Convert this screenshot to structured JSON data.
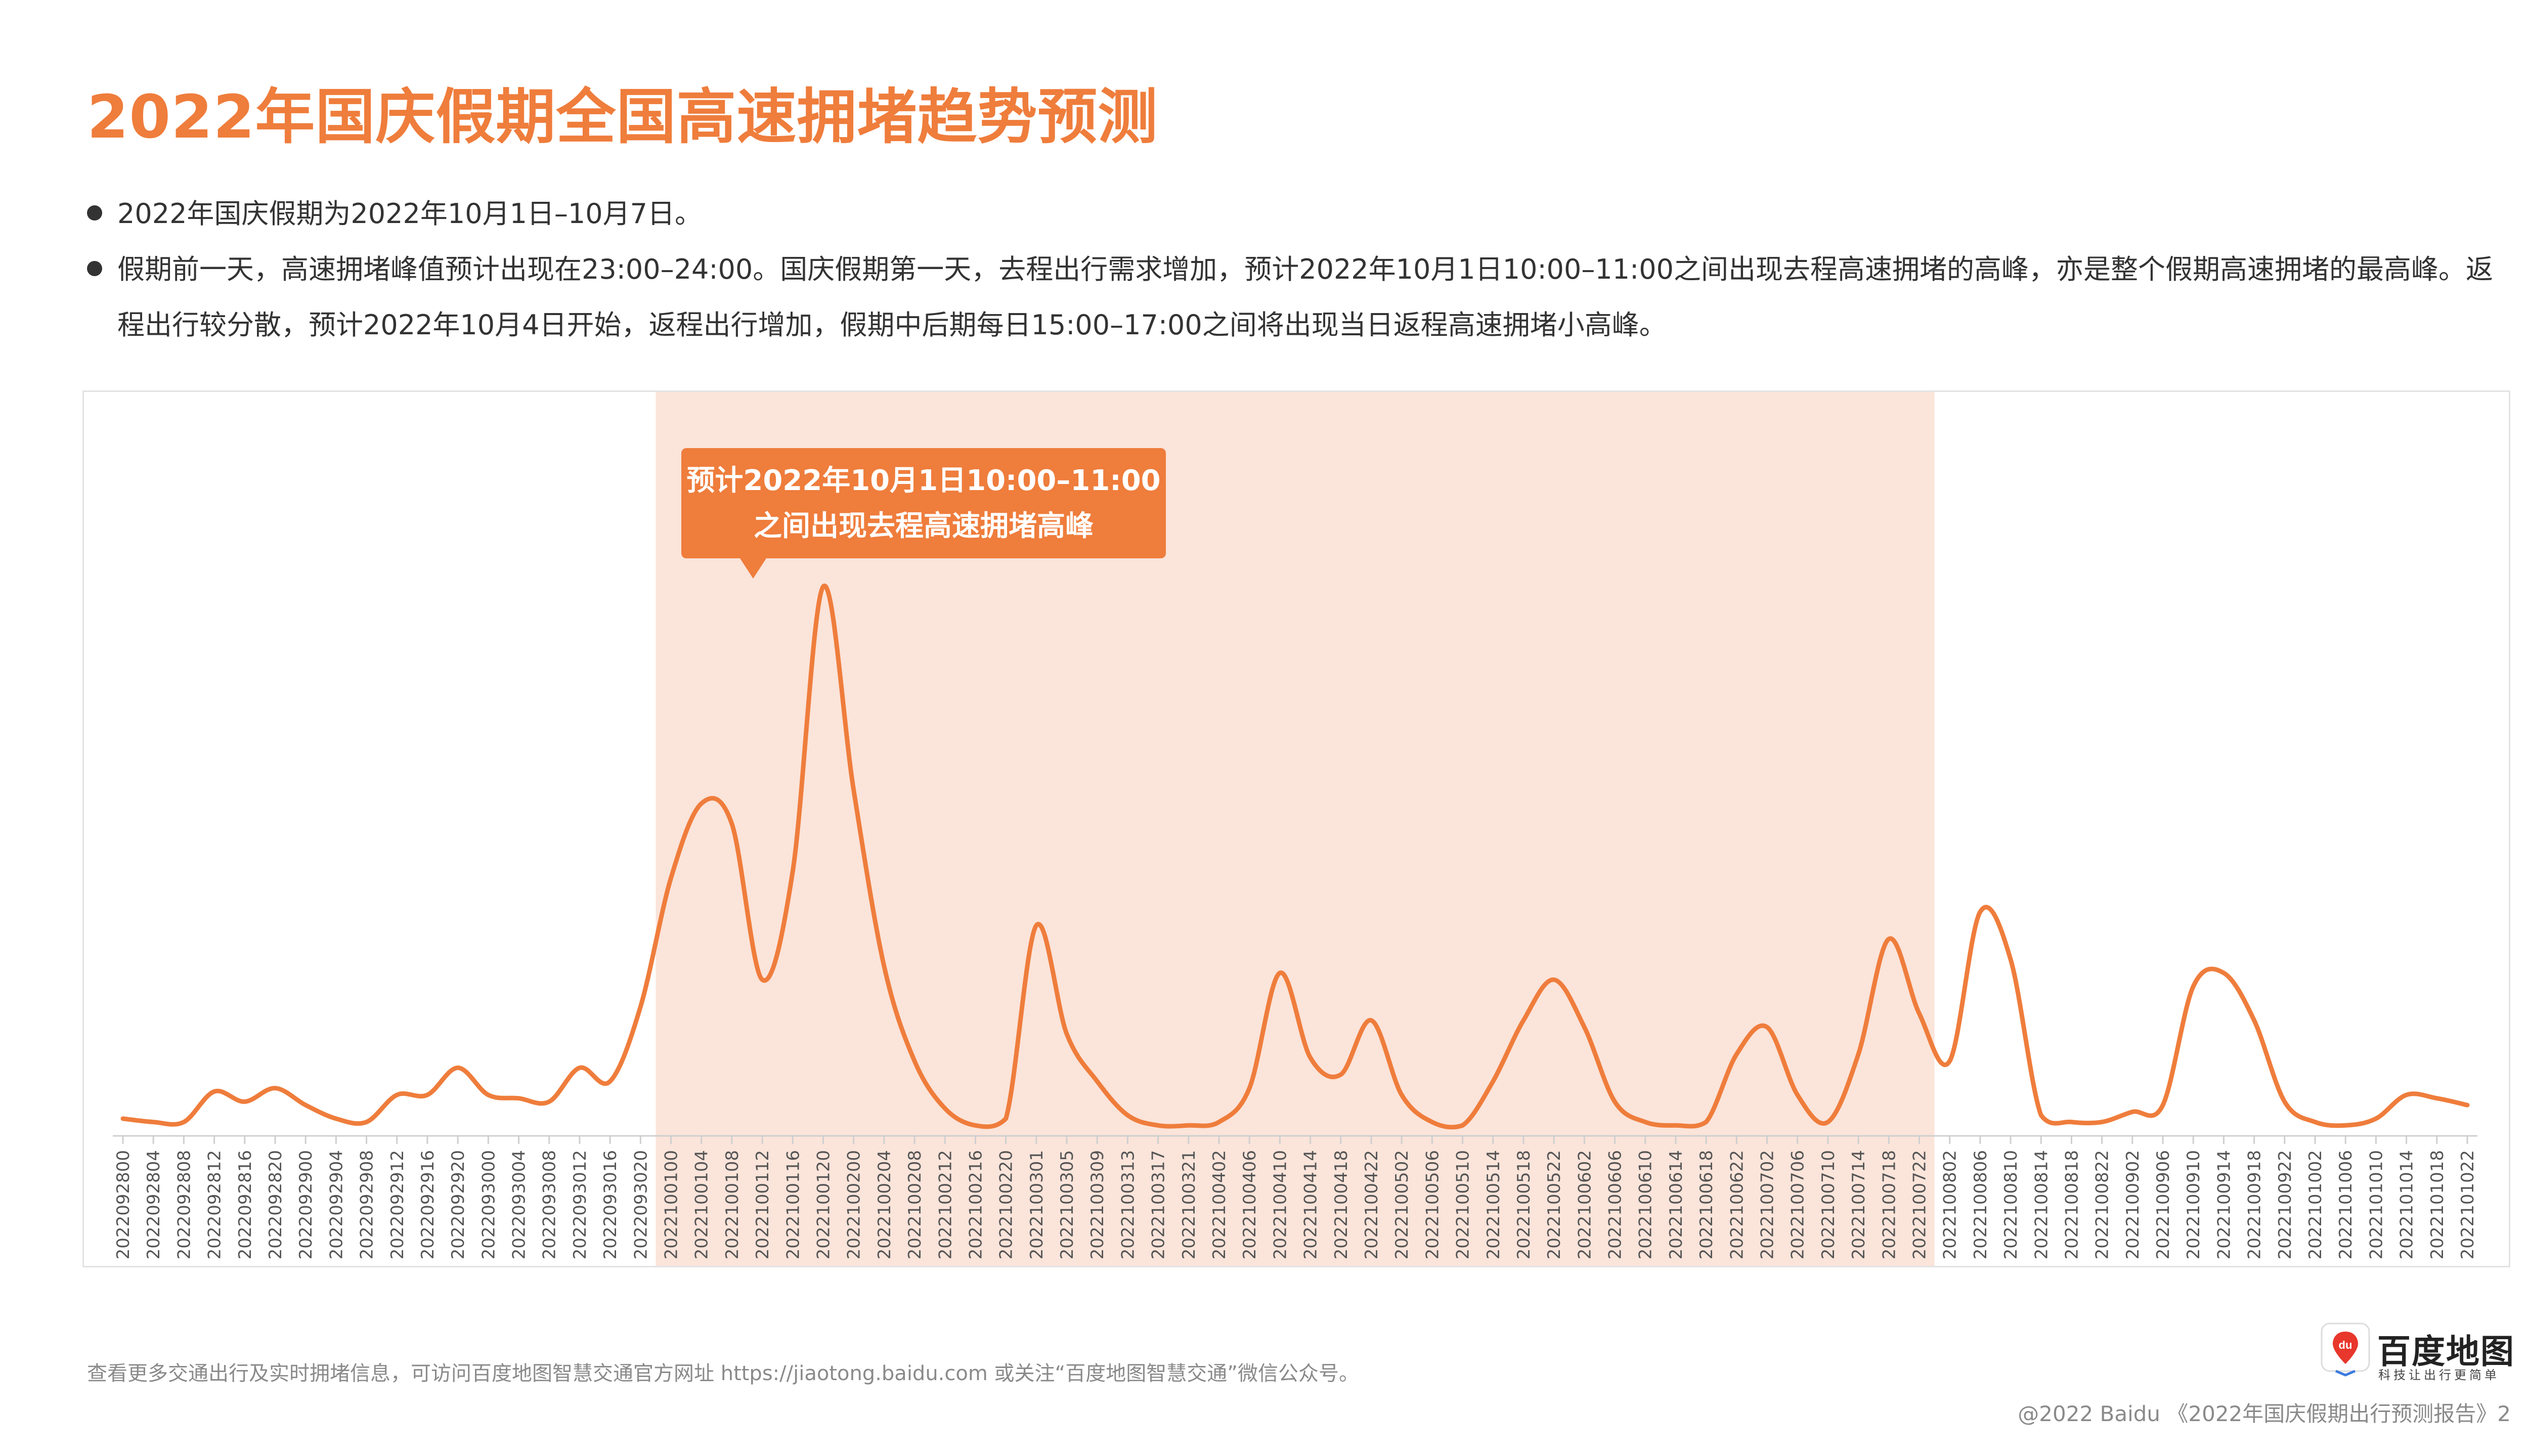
{
  "title": "2022年国庆假期全国高速拥堵趋势预测",
  "bullets": [
    "2022年国庆假期为2022年10月1日–10月7日。",
    "假期前一天，高速拥堵峰值预计出现在23:00–24:00。国庆假期第一天，去程出行需求增加，预计2022年10月1日10:00–11:00之间出现去程高速拥堵的高峰，亦是整个假期高速拥堵的最高峰。返程出行较分散，预计2022年10月4日开始，返程出行增加，假期中后期每日15:00–17:00之间将出现当日返程高速拥堵小高峰。"
  ],
  "callout": {
    "line1": "预计2022年10月1日10:00–11:00",
    "line2": "之间出现去程高速拥堵高峰"
  },
  "footnote": "查看更多交通出行及实时拥堵信息，可访问百度地图智慧交通官方网址 https://jiaotong.baidu.com 或关注“百度地图智慧交通”微信公众号。",
  "copyright": "@2022 Baidu 《2022年国庆假期出行预测报告》2",
  "logo": {
    "badge": "du",
    "brand": "百度地图",
    "slogan": "科技让出行更简单"
  },
  "colors": {
    "accent": "#ef7d3c",
    "holiday_band": "#fbe4da",
    "text": "#333333",
    "muted": "#8a8a8a"
  },
  "chart_data": {
    "type": "line",
    "title": "",
    "xlabel": "",
    "ylabel": "",
    "grid": false,
    "highlight_range": [
      "2022100100",
      "2022100722"
    ],
    "categories": [
      "2022092800",
      "2022092804",
      "2022092808",
      "2022092812",
      "2022092816",
      "2022092820",
      "2022092900",
      "2022092904",
      "2022092908",
      "2022092912",
      "2022092916",
      "2022092920",
      "2022093000",
      "2022093004",
      "2022093008",
      "2022093012",
      "2022093016",
      "2022093020",
      "2022100100",
      "2022100104",
      "2022100108",
      "2022100112",
      "2022100116",
      "2022100120",
      "2022100200",
      "2022100204",
      "2022100208",
      "2022100212",
      "2022100216",
      "2022100220",
      "2022100301",
      "2022100305",
      "2022100309",
      "2022100313",
      "2022100317",
      "2022100321",
      "2022100402",
      "2022100406",
      "2022100410",
      "2022100414",
      "2022100418",
      "2022100422",
      "2022100502",
      "2022100506",
      "2022100510",
      "2022100514",
      "2022100518",
      "2022100522",
      "2022100602",
      "2022100606",
      "2022100610",
      "2022100614",
      "2022100618",
      "2022100622",
      "2022100702",
      "2022100706",
      "2022100710",
      "2022100714",
      "2022100718",
      "2022100722",
      "2022100802",
      "2022100806",
      "2022100810",
      "2022100814",
      "2022100818",
      "2022100822",
      "2022100902",
      "2022100906",
      "2022100910",
      "2022100914",
      "2022100918",
      "2022100922",
      "2022101002",
      "2022101006",
      "2022101010",
      "2022101014",
      "2022101018",
      "2022101022"
    ],
    "series": [
      {
        "values": [
          1.5,
          1.0,
          1.0,
          5.5,
          4.0,
          6.0,
          3.5,
          1.5,
          1.0,
          5.0,
          5.0,
          9.0,
          5.0,
          4.5,
          4.0,
          9.0,
          7.0,
          18.0,
          37.0,
          48.0,
          45.0,
          22.0,
          38.0,
          80.0,
          50.0,
          24.0,
          10.0,
          3.0,
          0.5,
          1.5,
          30.0,
          14.0,
          7.0,
          2.0,
          0.5,
          0.5,
          1.0,
          6.0,
          23.0,
          10.5,
          8.0,
          16.0,
          5.0,
          1.0,
          0.5,
          7.0,
          16.0,
          22.0,
          15.0,
          4.0,
          1.0,
          0.5,
          1.0,
          11.0,
          15.0,
          5.0,
          1.0,
          11.0,
          28.0,
          17.0,
          10.0,
          32.0,
          25.0,
          2.0,
          1.0,
          1.0,
          2.5,
          3.5,
          21.0,
          23.0,
          16.0,
          4.0,
          1.0,
          0.5,
          1.5,
          5.0,
          4.5,
          3.5
        ]
      }
    ]
  }
}
